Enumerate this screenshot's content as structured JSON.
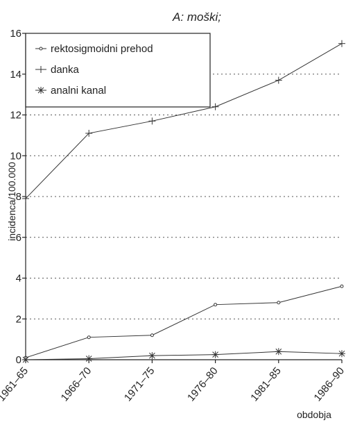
{
  "chart_data": {
    "type": "line",
    "title": "A: moški;",
    "xlabel": "obdobja",
    "ylabel": "incidenca/100.000",
    "categories": [
      "1961–65",
      "1966–70",
      "1971–75",
      "1976–80",
      "1981–85",
      "1986–90"
    ],
    "ylim": [
      0,
      16
    ],
    "yticks": [
      "0",
      "2",
      "4",
      "6",
      "8",
      "10",
      "12",
      "14",
      "16"
    ],
    "grid": "horizontal dotted",
    "legend_position": "top-left",
    "series": [
      {
        "name": "rektosigmoidni prehod",
        "marker": "circle",
        "values": [
          0.1,
          1.1,
          1.2,
          2.7,
          2.8,
          3.6
        ]
      },
      {
        "name": "danka",
        "marker": "plus",
        "values": [
          7.9,
          11.1,
          11.7,
          12.4,
          13.7,
          15.5
        ]
      },
      {
        "name": "analni kanal",
        "marker": "asterisk",
        "values": [
          0.0,
          0.05,
          0.2,
          0.25,
          0.4,
          0.3
        ]
      }
    ]
  }
}
